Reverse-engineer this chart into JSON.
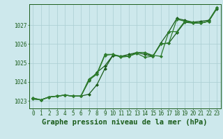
{
  "x": [
    0,
    1,
    2,
    3,
    4,
    5,
    6,
    7,
    8,
    9,
    10,
    11,
    12,
    13,
    14,
    15,
    16,
    17,
    18,
    19,
    20,
    21,
    22,
    23
  ],
  "line1": [
    1023.1,
    1023.05,
    1023.2,
    1023.25,
    1023.3,
    1023.25,
    1023.25,
    1023.35,
    1023.85,
    1024.7,
    1025.4,
    1025.35,
    1025.45,
    1025.55,
    1025.55,
    1025.35,
    1026.0,
    1026.05,
    1026.6,
    1027.15,
    1027.1,
    1027.1,
    1027.2,
    1027.85
  ],
  "line2": [
    1023.15,
    1023.05,
    1023.2,
    1023.25,
    1023.3,
    1023.25,
    1023.25,
    1024.05,
    1024.5,
    1024.85,
    1025.4,
    1025.35,
    1025.35,
    1025.55,
    1025.45,
    1025.35,
    1026.05,
    1026.65,
    1027.35,
    1027.25,
    1027.15,
    1027.2,
    1027.25,
    1027.9
  ],
  "line3": [
    1023.15,
    1023.05,
    1023.2,
    1023.25,
    1023.3,
    1023.25,
    1023.25,
    1024.15,
    1024.45,
    1025.45,
    1025.45,
    1025.35,
    1025.35,
    1025.55,
    1025.55,
    1025.4,
    1025.35,
    1026.65,
    1026.65,
    1027.2,
    1027.15,
    1027.1,
    1027.2,
    1027.9
  ],
  "line4": [
    1023.1,
    1023.05,
    1023.2,
    1023.25,
    1023.3,
    1023.25,
    1023.25,
    1024.1,
    1024.4,
    1025.4,
    1025.45,
    1025.3,
    1025.35,
    1025.5,
    1025.3,
    1025.35,
    1026.0,
    1026.05,
    1027.3,
    1027.2,
    1027.1,
    1027.1,
    1027.2,
    1027.9
  ],
  "line_color": "#1a5c1a",
  "line_color2": "#2e7d2e",
  "bg_color": "#cde8ec",
  "grid_color": "#aacdd2",
  "xlabel": "Graphe pression niveau de la mer (hPa)",
  "ylim": [
    1022.6,
    1028.1
  ],
  "yticks": [
    1023,
    1024,
    1025,
    1026,
    1027
  ],
  "xticks": [
    0,
    1,
    2,
    3,
    4,
    5,
    6,
    7,
    8,
    9,
    10,
    11,
    12,
    13,
    14,
    15,
    16,
    17,
    18,
    19,
    20,
    21,
    22,
    23
  ],
  "marker": "D",
  "markersize": 2.0,
  "linewidth": 0.9,
  "xlabel_fontsize": 7.5,
  "tick_fontsize": 5.5
}
